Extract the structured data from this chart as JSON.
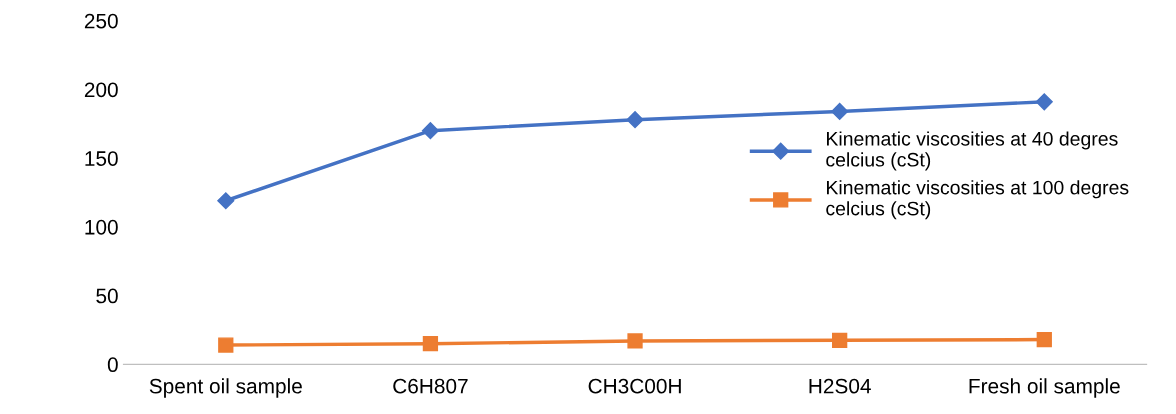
{
  "chart_data": {
    "type": "line",
    "categories": [
      "Spent oil sample",
      "C6H807",
      "CH3C00H",
      "H2S04",
      "Fresh oil sample"
    ],
    "series": [
      {
        "name": "Kinematic viscosities at 40 degres celcius (cSt)",
        "color": "#4472c4",
        "marker": "diamond",
        "values": [
          119,
          170,
          178,
          184,
          191
        ]
      },
      {
        "name": "Kinematic viscosities at 100 degres celcius (cSt)",
        "color": "#ed7d31",
        "marker": "square",
        "values": [
          14,
          15,
          17,
          17.5,
          18
        ]
      }
    ],
    "ylim": [
      0,
      250
    ],
    "yticks": [
      0,
      50,
      100,
      150,
      200,
      250
    ],
    "grid": false,
    "legend": "right",
    "line_style": "solid"
  }
}
